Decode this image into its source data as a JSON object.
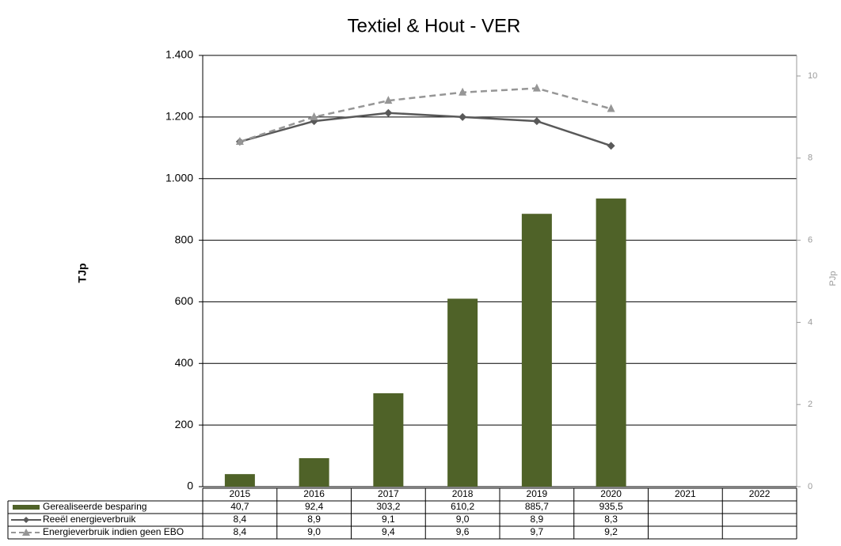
{
  "chart_data": {
    "type": "bar",
    "title": "Textiel & Hout  -  VER",
    "ylabel": "TJp",
    "y2label": "PJp",
    "categories": [
      "2015",
      "2016",
      "2017",
      "2018",
      "2019",
      "2020",
      "2021",
      "2022"
    ],
    "ylim": [
      0,
      1400
    ],
    "yticks": [
      0,
      200,
      400,
      600,
      800,
      {
        "value": 1000,
        "label": "1.000"
      },
      {
        "value": 1200,
        "label": "1.200"
      },
      {
        "value": 1400,
        "label": "1.400"
      }
    ],
    "y2lim": [
      0,
      10
    ],
    "y2ticks": [
      0,
      2,
      4,
      6,
      8,
      10
    ],
    "grid": true,
    "series": [
      {
        "name": "Gerealiseerde besparing",
        "type": "bar",
        "color": "#4f6228",
        "values": [
          40.7,
          92.4,
          303.2,
          610.2,
          885.7,
          935.5,
          null,
          null
        ],
        "value_labels": [
          "40,7",
          "92,4",
          "303,2",
          "610,2",
          "885,7",
          "935,5",
          null,
          null
        ]
      },
      {
        "name": "Reeël energieverbruik",
        "type": "line",
        "axis": "y2",
        "color": "#595959",
        "marker": "diamond",
        "values": [
          8.4,
          8.9,
          9.1,
          9.0,
          8.9,
          8.3,
          null,
          null
        ],
        "value_labels": [
          "8,4",
          "8,9",
          "9,1",
          "9,0",
          "8,9",
          "8,3",
          null,
          null
        ]
      },
      {
        "name": "Energieverbruik indien geen EBO",
        "type": "line",
        "axis": "y2",
        "color": "#969696",
        "marker": "triangle",
        "dashed": true,
        "values": [
          8.4,
          9.0,
          9.4,
          9.6,
          9.7,
          9.2,
          null,
          null
        ],
        "value_labels": [
          "8,4",
          "9,0",
          "9,4",
          "9,6",
          "9,7",
          "9,2",
          null,
          null
        ]
      }
    ]
  }
}
